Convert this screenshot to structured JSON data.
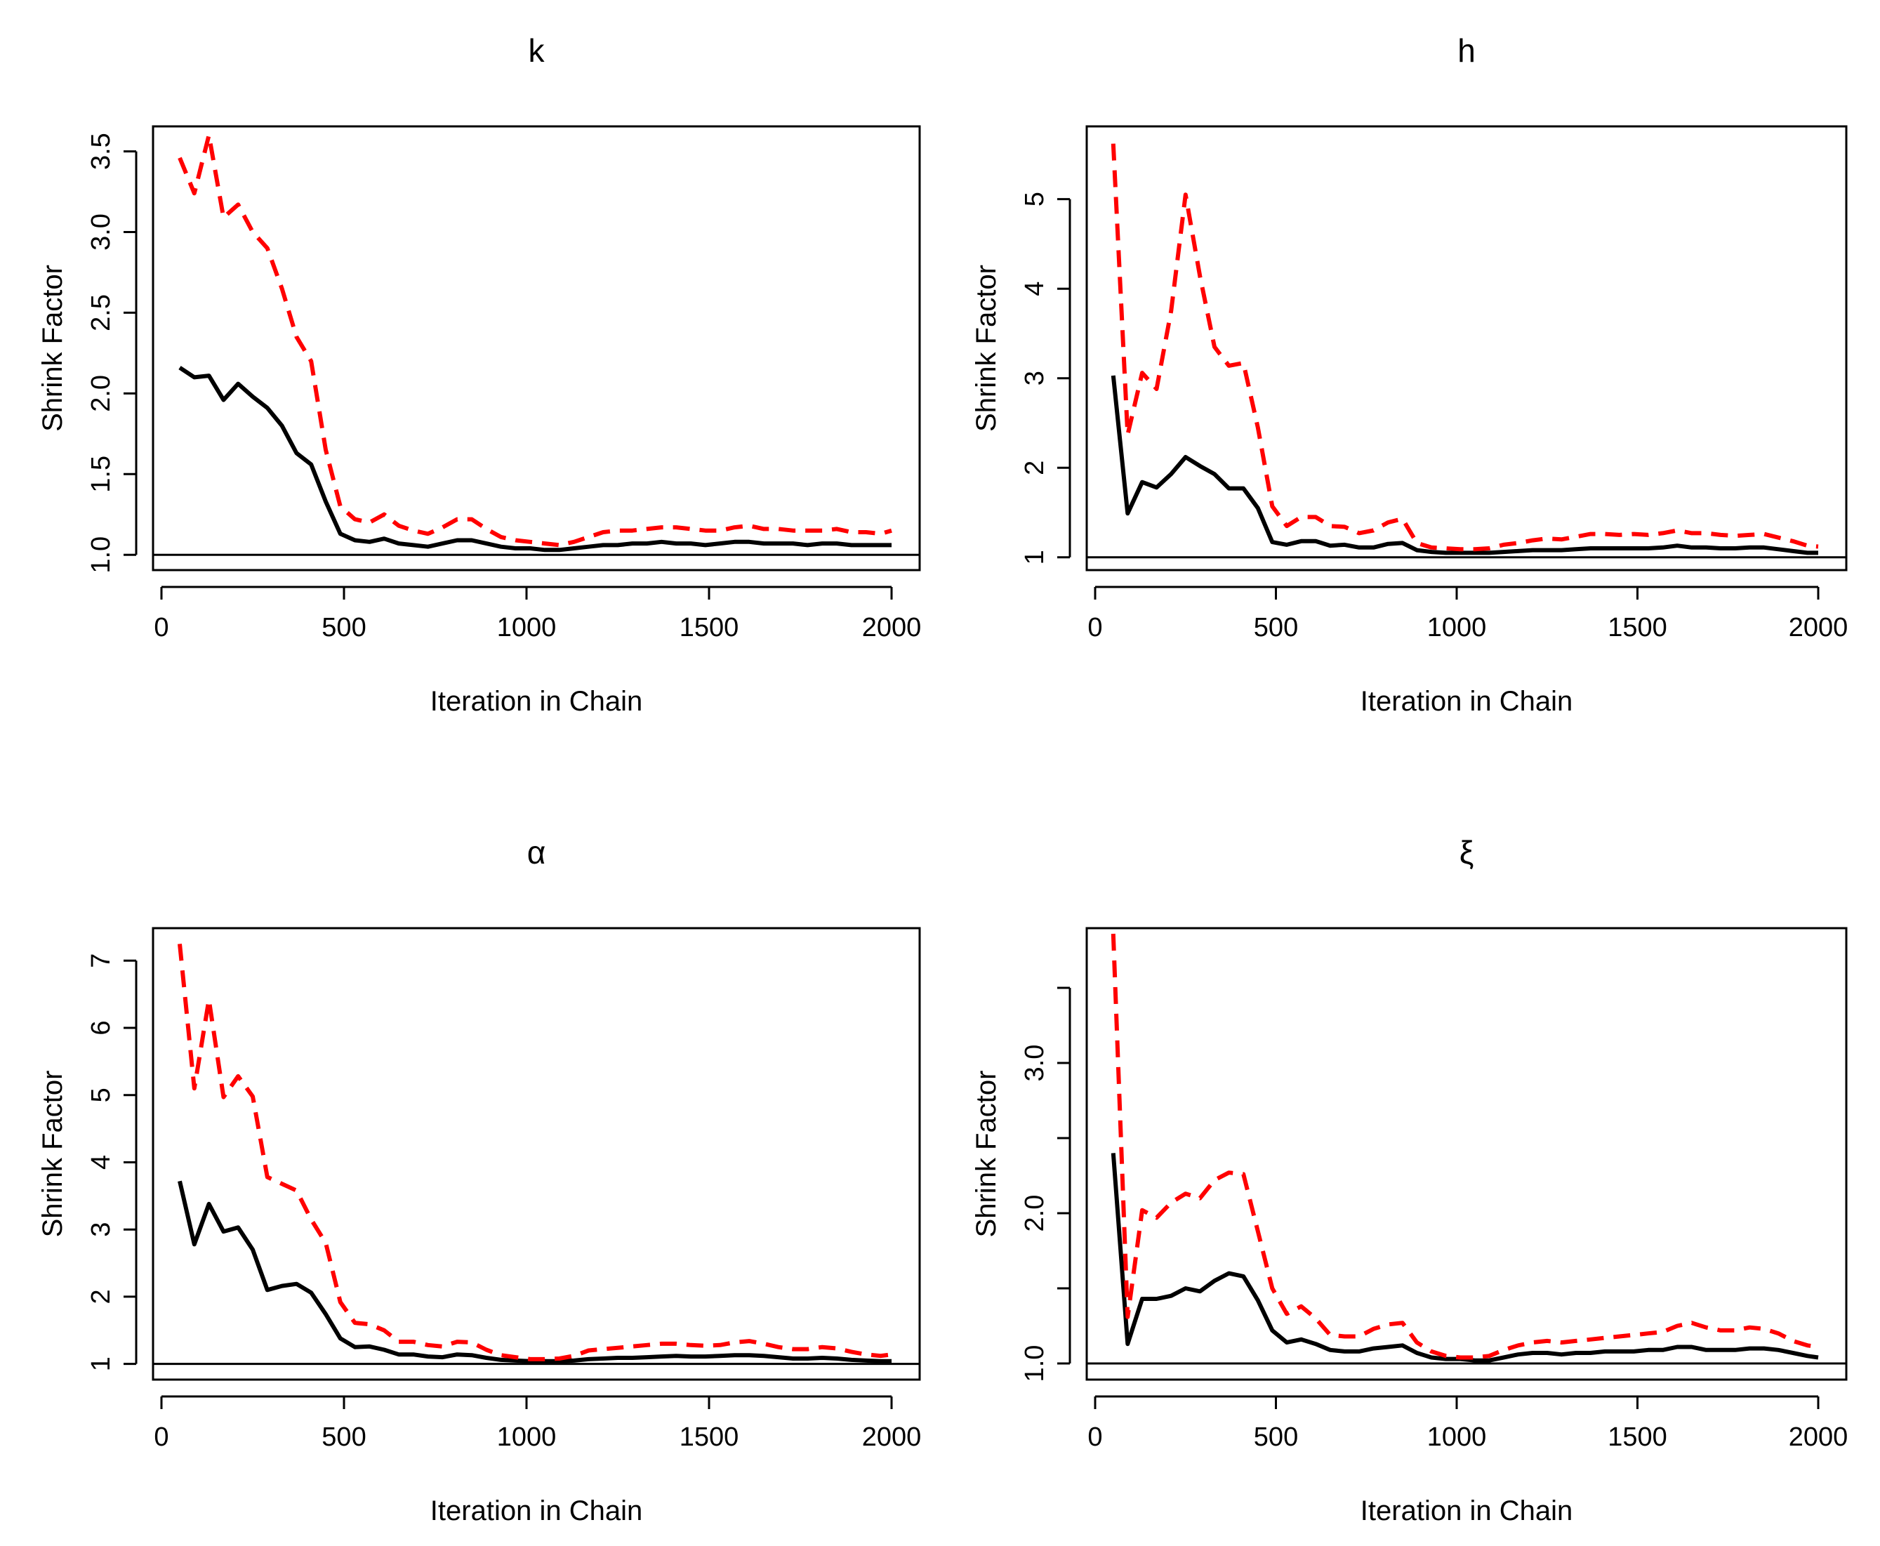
{
  "chart_data": [
    {
      "type": "line",
      "title": "k",
      "xlabel": "Iteration in Chain",
      "ylabel": "Shrink Factor",
      "xlim": [
        0,
        2000
      ],
      "ylim": [
        0.94,
        3.62
      ],
      "x_ticks": [
        0,
        500,
        1000,
        1500,
        2000
      ],
      "y_ticks": [
        1.0,
        1.5,
        2.0,
        2.5,
        3.0,
        3.5
      ],
      "x_tick_labels": [
        "0",
        "500",
        "1000",
        "1500",
        "2000"
      ],
      "y_tick_labels": [
        "1.0",
        "1.5",
        "2.0",
        "2.5",
        "3.0",
        "3.5"
      ],
      "reference_line": 1,
      "series": [
        {
          "x": [
            50,
            90,
            130,
            170,
            210,
            250,
            290,
            330,
            370,
            410,
            450,
            490,
            530,
            570,
            610,
            650,
            690,
            730,
            770,
            810,
            850,
            890,
            930,
            970,
            1010,
            1050,
            1090,
            1130,
            1170,
            1210,
            1250,
            1290,
            1330,
            1370,
            1410,
            1450,
            1490,
            1530,
            1570,
            1610,
            1650,
            1690,
            1730,
            1770,
            1810,
            1850,
            1890,
            1930,
            1970,
            2000
          ],
          "values": [
            2.16,
            2.1,
            2.11,
            1.96,
            2.06,
            1.98,
            1.91,
            1.8,
            1.63,
            1.56,
            1.33,
            1.13,
            1.09,
            1.08,
            1.1,
            1.07,
            1.06,
            1.05,
            1.07,
            1.09,
            1.09,
            1.07,
            1.05,
            1.04,
            1.04,
            1.03,
            1.03,
            1.04,
            1.05,
            1.06,
            1.06,
            1.07,
            1.07,
            1.08,
            1.07,
            1.07,
            1.06,
            1.07,
            1.08,
            1.08,
            1.07,
            1.07,
            1.07,
            1.06,
            1.07,
            1.07,
            1.06,
            1.06,
            1.06,
            1.06
          ]
        },
        {
          "x": [
            50,
            90,
            130,
            170,
            210,
            250,
            290,
            330,
            370,
            410,
            450,
            490,
            530,
            570,
            610,
            650,
            690,
            730,
            770,
            810,
            850,
            890,
            930,
            970,
            1010,
            1050,
            1090,
            1130,
            1170,
            1210,
            1250,
            1290,
            1330,
            1370,
            1410,
            1450,
            1490,
            1530,
            1570,
            1610,
            1650,
            1690,
            1730,
            1770,
            1810,
            1850,
            1890,
            1930,
            1970,
            2000
          ],
          "values": [
            3.46,
            3.24,
            3.6,
            3.09,
            3.17,
            3.0,
            2.9,
            2.65,
            2.35,
            2.2,
            1.65,
            1.3,
            1.22,
            1.2,
            1.25,
            1.18,
            1.15,
            1.13,
            1.17,
            1.22,
            1.22,
            1.16,
            1.11,
            1.09,
            1.08,
            1.07,
            1.06,
            1.08,
            1.11,
            1.14,
            1.15,
            1.15,
            1.16,
            1.17,
            1.17,
            1.16,
            1.15,
            1.15,
            1.17,
            1.18,
            1.16,
            1.16,
            1.15,
            1.15,
            1.15,
            1.16,
            1.14,
            1.14,
            1.13,
            1.15
          ]
        }
      ]
    },
    {
      "type": "line",
      "title": "h",
      "xlabel": "Iteration in Chain",
      "ylabel": "Shrink Factor",
      "xlim": [
        0,
        2000
      ],
      "ylim": [
        0.92,
        5.75
      ],
      "x_ticks": [
        0,
        500,
        1000,
        1500,
        2000
      ],
      "y_ticks": [
        1,
        2,
        3,
        4,
        5
      ],
      "x_tick_labels": [
        "0",
        "500",
        "1000",
        "1500",
        "2000"
      ],
      "y_tick_labels": [
        "1",
        "2",
        "3",
        "4",
        "5"
      ],
      "reference_line": 1,
      "series": [
        {
          "x": [
            50,
            90,
            130,
            170,
            210,
            250,
            290,
            330,
            370,
            410,
            450,
            490,
            530,
            570,
            610,
            650,
            690,
            730,
            770,
            810,
            850,
            890,
            930,
            970,
            1010,
            1050,
            1090,
            1130,
            1170,
            1210,
            1250,
            1290,
            1330,
            1370,
            1410,
            1450,
            1490,
            1530,
            1570,
            1610,
            1650,
            1690,
            1730,
            1770,
            1810,
            1850,
            1890,
            1930,
            1970,
            2000
          ],
          "values": [
            3.03,
            1.49,
            1.84,
            1.78,
            1.93,
            2.12,
            2.02,
            1.93,
            1.77,
            1.77,
            1.55,
            1.17,
            1.14,
            1.18,
            1.18,
            1.13,
            1.14,
            1.11,
            1.11,
            1.15,
            1.16,
            1.08,
            1.06,
            1.05,
            1.05,
            1.05,
            1.05,
            1.06,
            1.07,
            1.08,
            1.08,
            1.08,
            1.09,
            1.1,
            1.1,
            1.1,
            1.1,
            1.1,
            1.11,
            1.13,
            1.11,
            1.11,
            1.1,
            1.1,
            1.11,
            1.11,
            1.09,
            1.07,
            1.05,
            1.05
          ]
        },
        {
          "x": [
            50,
            90,
            130,
            170,
            210,
            250,
            290,
            330,
            370,
            410,
            450,
            490,
            530,
            570,
            610,
            650,
            690,
            730,
            770,
            810,
            850,
            890,
            930,
            970,
            1010,
            1050,
            1090,
            1130,
            1170,
            1210,
            1250,
            1290,
            1330,
            1370,
            1410,
            1450,
            1490,
            1530,
            1570,
            1610,
            1650,
            1690,
            1730,
            1770,
            1810,
            1850,
            1890,
            1930,
            1970,
            2000
          ],
          "values": [
            5.62,
            2.37,
            3.06,
            2.88,
            3.75,
            5.05,
            4.14,
            3.35,
            3.14,
            3.17,
            2.45,
            1.57,
            1.35,
            1.45,
            1.45,
            1.35,
            1.34,
            1.27,
            1.3,
            1.39,
            1.43,
            1.16,
            1.11,
            1.1,
            1.09,
            1.09,
            1.1,
            1.14,
            1.16,
            1.19,
            1.21,
            1.2,
            1.23,
            1.26,
            1.26,
            1.25,
            1.26,
            1.25,
            1.27,
            1.3,
            1.27,
            1.27,
            1.25,
            1.24,
            1.25,
            1.26,
            1.22,
            1.18,
            1.13,
            1.12
          ]
        }
      ]
    },
    {
      "type": "line",
      "title": "α",
      "xlabel": "Iteration in Chain",
      "ylabel": "Shrink Factor",
      "xlim": [
        0,
        2000
      ],
      "ylim": [
        0.85,
        7.4
      ],
      "x_ticks": [
        0,
        500,
        1000,
        1500,
        2000
      ],
      "y_ticks": [
        1,
        2,
        3,
        4,
        5,
        6,
        7
      ],
      "x_tick_labels": [
        "0",
        "500",
        "1000",
        "1500",
        "2000"
      ],
      "y_tick_labels": [
        "1",
        "2",
        "3",
        "4",
        "5",
        "6",
        "7"
      ],
      "reference_line": 1,
      "series": [
        {
          "x": [
            50,
            90,
            130,
            170,
            210,
            250,
            290,
            330,
            370,
            410,
            450,
            490,
            530,
            570,
            610,
            650,
            690,
            730,
            770,
            810,
            850,
            890,
            930,
            970,
            1010,
            1050,
            1090,
            1130,
            1170,
            1210,
            1250,
            1290,
            1330,
            1370,
            1410,
            1450,
            1490,
            1530,
            1570,
            1610,
            1650,
            1690,
            1730,
            1770,
            1810,
            1850,
            1890,
            1930,
            1970,
            2000
          ],
          "values": [
            3.72,
            2.78,
            3.38,
            2.97,
            3.03,
            2.7,
            2.1,
            2.16,
            2.19,
            2.06,
            1.74,
            1.38,
            1.25,
            1.26,
            1.21,
            1.14,
            1.14,
            1.11,
            1.1,
            1.14,
            1.13,
            1.09,
            1.06,
            1.05,
            1.04,
            1.04,
            1.04,
            1.05,
            1.07,
            1.08,
            1.09,
            1.09,
            1.1,
            1.11,
            1.12,
            1.11,
            1.11,
            1.12,
            1.13,
            1.13,
            1.12,
            1.1,
            1.08,
            1.08,
            1.09,
            1.08,
            1.06,
            1.05,
            1.04,
            1.04
          ]
        },
        {
          "x": [
            50,
            90,
            130,
            170,
            210,
            250,
            290,
            330,
            370,
            410,
            450,
            490,
            530,
            570,
            610,
            650,
            690,
            730,
            770,
            810,
            850,
            890,
            930,
            970,
            1010,
            1050,
            1090,
            1130,
            1170,
            1210,
            1250,
            1290,
            1330,
            1370,
            1410,
            1450,
            1490,
            1530,
            1570,
            1610,
            1650,
            1690,
            1730,
            1770,
            1810,
            1850,
            1890,
            1930,
            1970,
            2000
          ],
          "values": [
            7.25,
            5.1,
            6.42,
            4.97,
            5.28,
            4.98,
            3.78,
            3.68,
            3.58,
            3.15,
            2.8,
            1.92,
            1.61,
            1.59,
            1.5,
            1.33,
            1.33,
            1.28,
            1.26,
            1.33,
            1.32,
            1.21,
            1.13,
            1.1,
            1.07,
            1.07,
            1.08,
            1.12,
            1.2,
            1.22,
            1.24,
            1.26,
            1.28,
            1.3,
            1.3,
            1.28,
            1.27,
            1.28,
            1.32,
            1.34,
            1.3,
            1.25,
            1.22,
            1.22,
            1.25,
            1.23,
            1.18,
            1.14,
            1.12,
            1.14
          ]
        }
      ]
    },
    {
      "type": "line",
      "title": "ξ",
      "xlabel": "Iteration in Chain",
      "ylabel": "Shrink Factor",
      "xlim": [
        0,
        2000
      ],
      "ylim": [
        0.93,
        3.86
      ],
      "x_ticks": [
        0,
        500,
        1000,
        1500,
        2000
      ],
      "y_ticks": [
        1.0,
        1.5,
        2.0,
        2.5,
        3.0,
        3.5
      ],
      "x_tick_labels": [
        "0",
        "500",
        "1000",
        "1500",
        "2000"
      ],
      "y_tick_labels": [
        "1.0",
        "",
        "2.0",
        "",
        "3.0",
        ""
      ],
      "reference_line": 1,
      "series": [
        {
          "x": [
            50,
            90,
            130,
            170,
            210,
            250,
            290,
            330,
            370,
            410,
            450,
            490,
            530,
            570,
            610,
            650,
            690,
            730,
            770,
            810,
            850,
            890,
            930,
            970,
            1010,
            1050,
            1090,
            1130,
            1170,
            1210,
            1250,
            1290,
            1330,
            1370,
            1410,
            1450,
            1490,
            1530,
            1570,
            1610,
            1650,
            1690,
            1730,
            1770,
            1810,
            1850,
            1890,
            1930,
            1970,
            2000
          ],
          "values": [
            2.4,
            1.13,
            1.43,
            1.43,
            1.45,
            1.5,
            1.48,
            1.55,
            1.6,
            1.58,
            1.42,
            1.22,
            1.14,
            1.16,
            1.13,
            1.09,
            1.08,
            1.08,
            1.1,
            1.11,
            1.12,
            1.07,
            1.04,
            1.03,
            1.03,
            1.02,
            1.02,
            1.04,
            1.06,
            1.07,
            1.07,
            1.06,
            1.07,
            1.07,
            1.08,
            1.08,
            1.08,
            1.09,
            1.09,
            1.11,
            1.11,
            1.09,
            1.09,
            1.09,
            1.1,
            1.1,
            1.09,
            1.07,
            1.05,
            1.04
          ]
        },
        {
          "x": [
            50,
            90,
            130,
            170,
            210,
            250,
            290,
            330,
            370,
            410,
            450,
            490,
            530,
            570,
            610,
            650,
            690,
            730,
            770,
            810,
            850,
            890,
            930,
            970,
            1010,
            1050,
            1090,
            1130,
            1170,
            1210,
            1250,
            1290,
            1330,
            1370,
            1410,
            1450,
            1490,
            1530,
            1570,
            1610,
            1650,
            1690,
            1730,
            1770,
            1810,
            1850,
            1890,
            1930,
            1970,
            2000
          ],
          "values": [
            3.86,
            1.31,
            2.02,
            1.97,
            2.07,
            2.13,
            2.1,
            2.22,
            2.27,
            2.26,
            1.88,
            1.5,
            1.33,
            1.38,
            1.3,
            1.19,
            1.18,
            1.18,
            1.23,
            1.26,
            1.27,
            1.14,
            1.08,
            1.05,
            1.04,
            1.04,
            1.05,
            1.09,
            1.12,
            1.14,
            1.15,
            1.14,
            1.15,
            1.16,
            1.17,
            1.18,
            1.19,
            1.2,
            1.21,
            1.25,
            1.27,
            1.24,
            1.22,
            1.22,
            1.24,
            1.23,
            1.2,
            1.15,
            1.12,
            1.11
          ]
        }
      ]
    }
  ]
}
